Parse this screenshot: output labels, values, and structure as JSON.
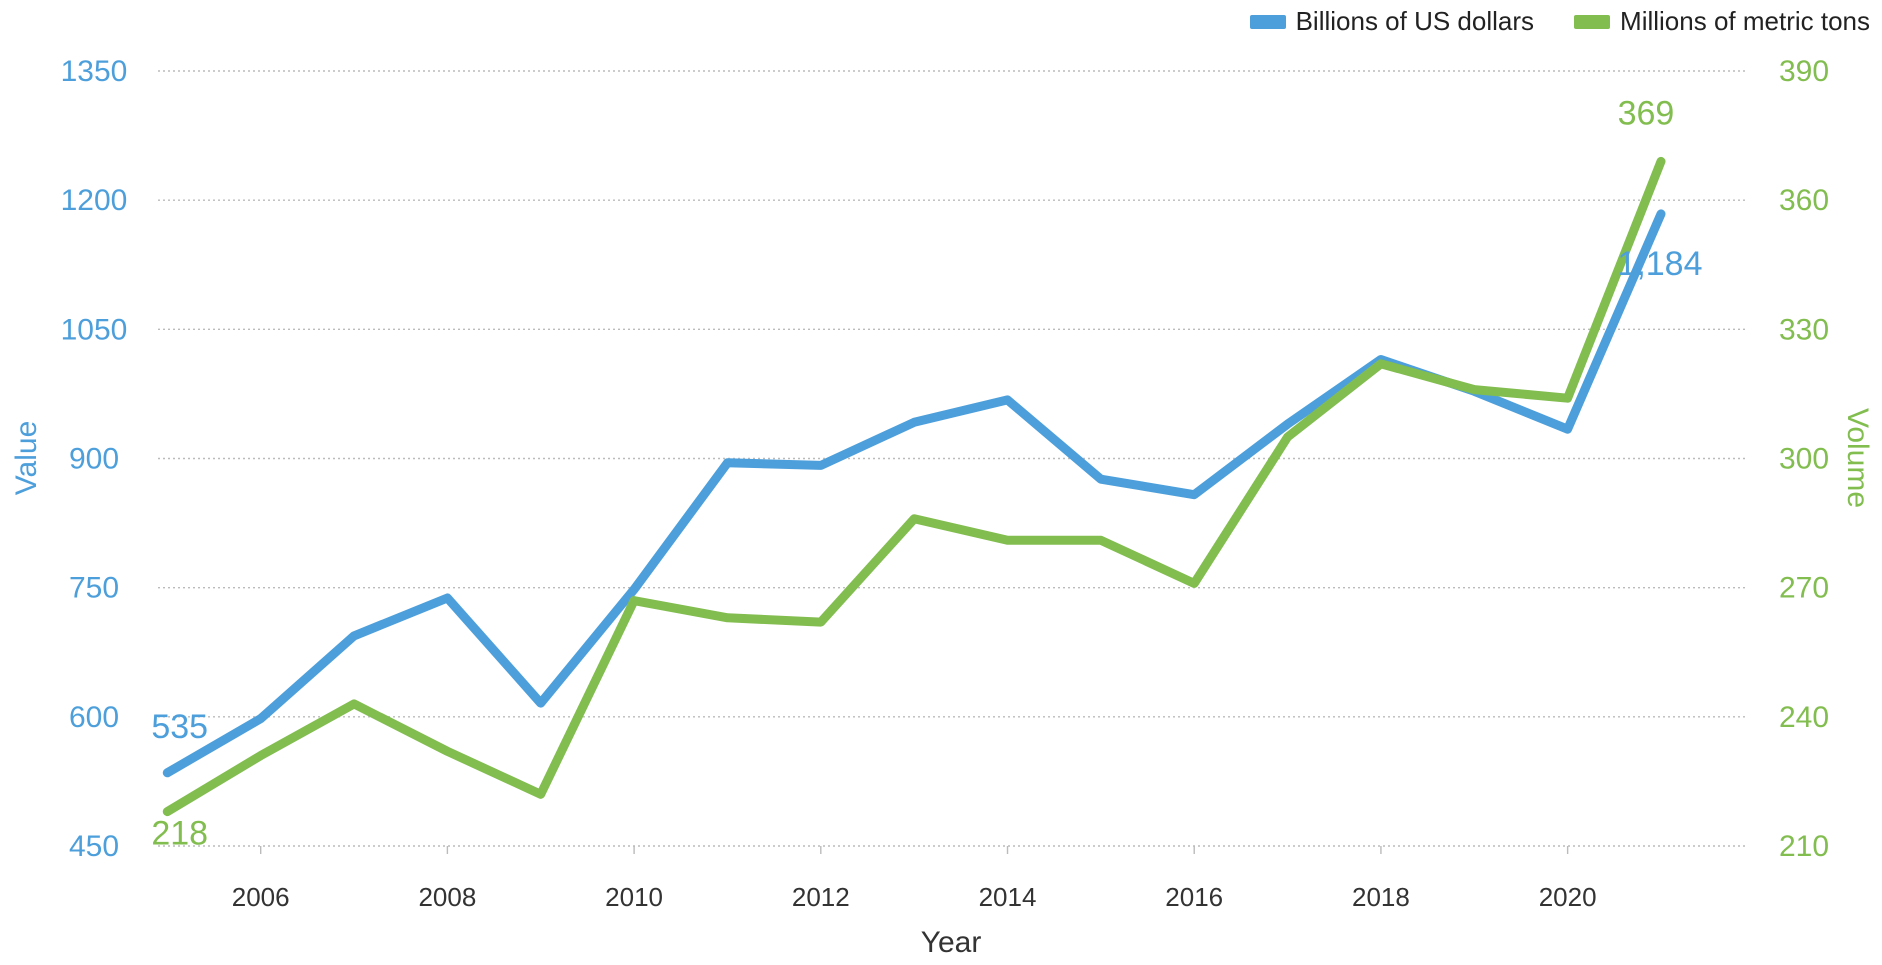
{
  "chart_data": {
    "type": "line",
    "title": "",
    "xlabel": "Year",
    "ylabel_left": "Value",
    "ylabel_right": "Volume",
    "x": [
      2005,
      2006,
      2007,
      2008,
      2009,
      2010,
      2011,
      2012,
      2013,
      2014,
      2015,
      2016,
      2017,
      2018,
      2019,
      2020,
      2021
    ],
    "x_ticks": [
      "2006",
      "2008",
      "2010",
      "2012",
      "2014",
      "2016",
      "2018",
      "2020"
    ],
    "x_tick_values": [
      2006,
      2008,
      2010,
      2012,
      2014,
      2016,
      2018,
      2020
    ],
    "xlim": [
      2004.9,
      2021.9
    ],
    "ylim_left": [
      450,
      1350
    ],
    "ylim_right": [
      210,
      390
    ],
    "y_ticks_left": [
      "1350",
      "1200",
      "1050",
      "900",
      "750",
      "600",
      "450"
    ],
    "y_tick_values_left": [
      1350,
      1200,
      1050,
      900,
      750,
      600,
      450
    ],
    "y_ticks_right": [
      "390",
      "360",
      "330",
      "300",
      "270",
      "240",
      "210"
    ],
    "y_tick_values_right": [
      390,
      360,
      330,
      300,
      270,
      240,
      210
    ],
    "grid": "horizontal dotted",
    "legend_position": "top-right",
    "series": [
      {
        "name": "Billions of US dollars",
        "axis": "left",
        "color": "#4d9fdb",
        "values": [
          535,
          598,
          694,
          738,
          616,
          748,
          895,
          892,
          942,
          968,
          876,
          858,
          940,
          1015,
          978,
          934,
          1184
        ],
        "labels": [
          {
            "index": 0,
            "text": "535"
          },
          {
            "index": 16,
            "text": "1,184"
          }
        ]
      },
      {
        "name": "Millions of metric tons",
        "axis": "right",
        "color": "#82bd4f",
        "values": [
          218,
          231,
          243,
          232,
          222,
          267,
          263,
          262,
          286,
          281,
          281,
          271,
          305,
          322,
          316,
          314,
          369
        ],
        "labels": [
          {
            "index": 0,
            "text": "218"
          },
          {
            "index": 16,
            "text": "369"
          }
        ]
      }
    ],
    "colors": {
      "left_axis": "#4d9fdb",
      "right_axis": "#82bd4f",
      "grid": "#bbbbbb",
      "text": "#333333"
    }
  }
}
